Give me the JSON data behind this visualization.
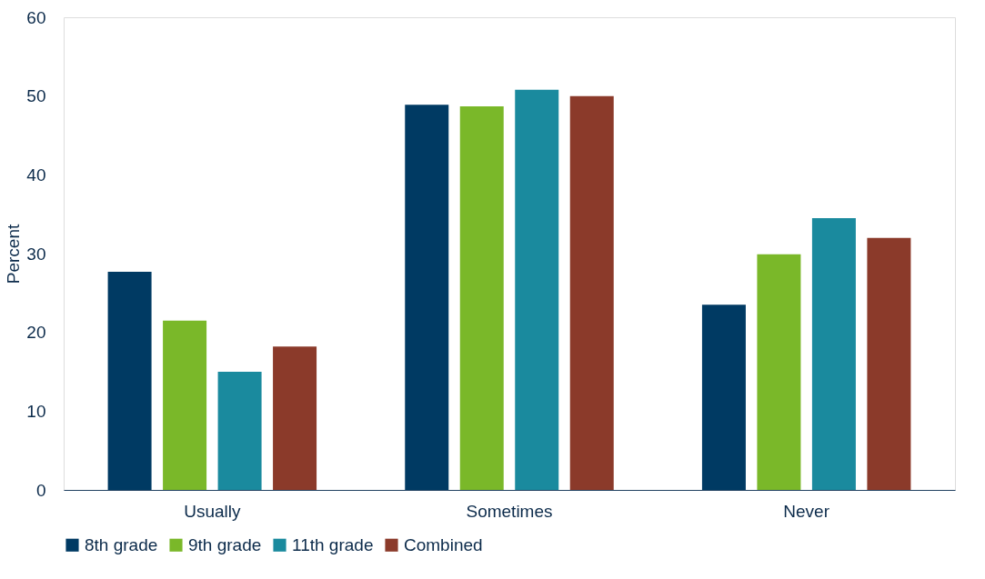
{
  "chart_data": {
    "type": "bar",
    "ylabel": "Percent",
    "categories": [
      "Usually",
      "Sometimes",
      "Never"
    ],
    "series": [
      {
        "name": "8th grade",
        "color": "#003a63",
        "values": [
          27.7,
          48.9,
          23.5
        ]
      },
      {
        "name": "9th grade",
        "color": "#7ab829",
        "values": [
          21.5,
          48.7,
          29.9
        ]
      },
      {
        "name": "11th grade",
        "color": "#1a8a9e",
        "values": [
          15.0,
          50.8,
          34.5
        ]
      },
      {
        "name": "Combined",
        "color": "#8b3a2a",
        "values": [
          18.2,
          50.0,
          32.0
        ]
      }
    ],
    "ylim": [
      0,
      60
    ],
    "yticks": [
      0,
      10,
      20,
      30,
      40,
      50,
      60
    ],
    "grid": false,
    "legend": "bottom"
  }
}
